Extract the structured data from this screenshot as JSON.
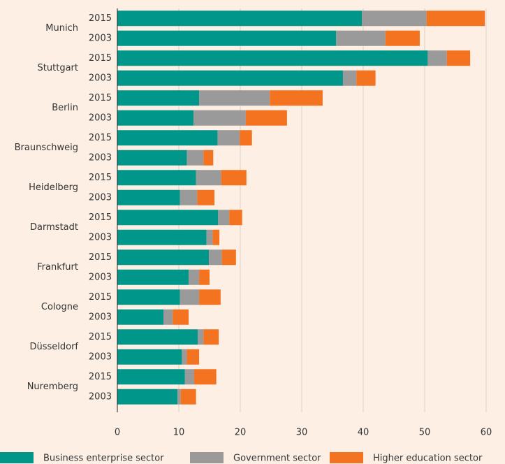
{
  "chart_data": {
    "type": "stacked-bar-horizontal",
    "groups": [
      "Munich",
      "Stuttgart",
      "Berlin",
      "Braunschweig",
      "Heidelberg",
      "Darmstadt",
      "Frankfurt",
      "Cologne",
      "Düsseldorf",
      "Nuremberg"
    ],
    "categories": [
      "2015",
      "2003",
      "2015",
      "2003",
      "2015",
      "2003",
      "2015",
      "2003",
      "2015",
      "2003",
      "2015",
      "2003",
      "2015",
      "2003",
      "2015",
      "2003",
      "2015",
      "2003",
      "2015",
      "2003"
    ],
    "series": [
      {
        "name": "Business enterprise sector",
        "color": "#00978a",
        "values": [
          39.8,
          35.6,
          50.5,
          36.7,
          13.3,
          12.4,
          16.3,
          11.3,
          12.8,
          10.2,
          16.4,
          14.5,
          14.9,
          11.6,
          10.2,
          7.5,
          13.1,
          10.5,
          11.0,
          9.8
        ]
      },
      {
        "name": "Government sector",
        "color": "#9a9a9a",
        "values": [
          10.5,
          8.0,
          3.1,
          2.2,
          11.5,
          8.5,
          3.6,
          2.7,
          4.1,
          2.8,
          1.8,
          1.0,
          2.1,
          1.7,
          3.1,
          1.5,
          0.9,
          0.8,
          1.5,
          0.5
        ]
      },
      {
        "name": "Higher education sector",
        "color": "#f47321",
        "values": [
          9.5,
          5.6,
          3.8,
          3.1,
          8.6,
          6.7,
          2.0,
          1.6,
          4.1,
          2.8,
          2.1,
          1.1,
          2.3,
          1.7,
          3.5,
          2.6,
          2.5,
          2.0,
          3.6,
          2.5
        ]
      }
    ],
    "xlim": [
      0,
      60
    ],
    "xticks": [
      0,
      10,
      20,
      30,
      40,
      50,
      60
    ],
    "grid": true,
    "legend": "bottom"
  }
}
